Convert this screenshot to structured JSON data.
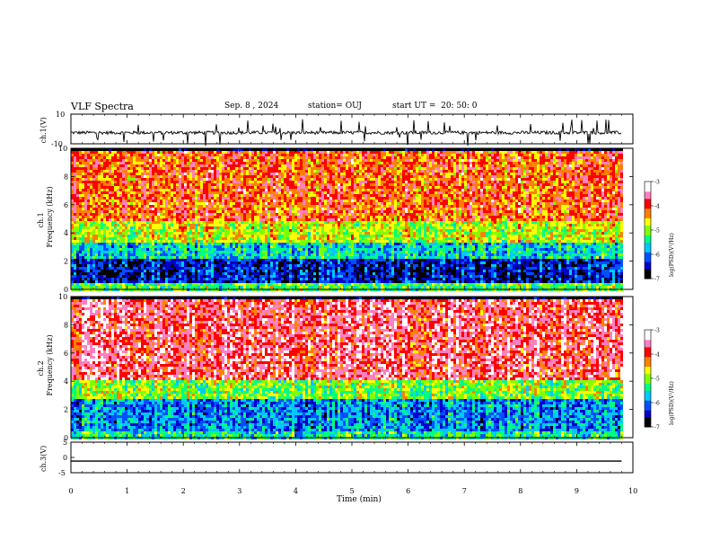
{
  "header": {
    "title": "VLF Spectra",
    "date": "Sep. 8 , 2024",
    "station": "station= OUJ",
    "start": "start UT =  20: 50: 0"
  },
  "chart_data": [
    {
      "type": "line",
      "title": "",
      "ylabel": "ch.1(V)",
      "ylim": [
        -10,
        10
      ],
      "yticks": [
        "10",
        "-10"
      ],
      "xlim": [
        0,
        10
      ],
      "series": [
        {
          "name": "",
          "x": [
            0,
            9.8
          ],
          "y": [
            -2.5,
            -2.5
          ]
        }
      ],
      "note_values": "noisy waveform around -2.5 V with spikes"
    },
    {
      "type": "heatmap",
      "ylabel": "ch.1",
      "ylabel2": "Frequency (kHz)",
      "ylim": [
        0,
        10
      ],
      "yticks": [
        "0",
        "2",
        "4",
        "6",
        "8",
        "10"
      ],
      "xlim": [
        0,
        9.8
      ],
      "bands": [
        {
          "f0": 0,
          "f1": 0.5,
          "level": -5.2
        },
        {
          "f0": 0.5,
          "f1": 2.2,
          "level": -6.4
        },
        {
          "f0": 2.2,
          "f1": 3.4,
          "level": -5.6
        },
        {
          "f0": 3.4,
          "f1": 5.0,
          "level": -4.8
        },
        {
          "f0": 5.0,
          "f1": 10,
          "level": -4.1
        }
      ],
      "colorbar": {
        "label": "log(PSD)(V²/Hz)",
        "min": -7,
        "max": -3,
        "ticks": [
          "-3",
          "-4",
          "-5",
          "-6",
          "-7"
        ]
      }
    },
    {
      "type": "heatmap",
      "ylabel": "ch.2",
      "ylabel2": "Frequency (kHz)",
      "ylim": [
        0,
        10
      ],
      "yticks": [
        "0",
        "2",
        "4",
        "6",
        "8",
        "10"
      ],
      "xlim": [
        0,
        9.8
      ],
      "bands": [
        {
          "f0": 0,
          "f1": 0.6,
          "level": -5.4
        },
        {
          "f0": 0.6,
          "f1": 2.8,
          "level": -5.9
        },
        {
          "f0": 2.8,
          "f1": 4.2,
          "level": -5.0
        },
        {
          "f0": 4.2,
          "f1": 10,
          "level": -3.7
        }
      ],
      "colorbar": {
        "label": "log(PSD)(V²/Hz)",
        "min": -7,
        "max": -3,
        "ticks": [
          "-3",
          "-4",
          "-5",
          "-6",
          "-7"
        ]
      }
    },
    {
      "type": "line",
      "ylabel": "ch.3(V)",
      "ylim": [
        -5,
        5
      ],
      "yticks": [
        "5",
        "0",
        "-5"
      ],
      "xlim": [
        0,
        10
      ],
      "series": [
        {
          "name": "",
          "x": [
            0,
            9.8
          ],
          "y": [
            -1.2,
            -1.2
          ]
        }
      ]
    }
  ],
  "xaxis": {
    "label": "Time (min)",
    "ticks": [
      "0",
      "1",
      "2",
      "3",
      "4",
      "5",
      "6",
      "7",
      "8",
      "9",
      "10"
    ]
  },
  "colors": {
    "scale": [
      "#000000",
      "#0000c8",
      "#0050ff",
      "#00c8ff",
      "#00ff80",
      "#80ff00",
      "#ffff00",
      "#ff8000",
      "#ff0000",
      "#ff80c0",
      "#ffffff"
    ]
  }
}
